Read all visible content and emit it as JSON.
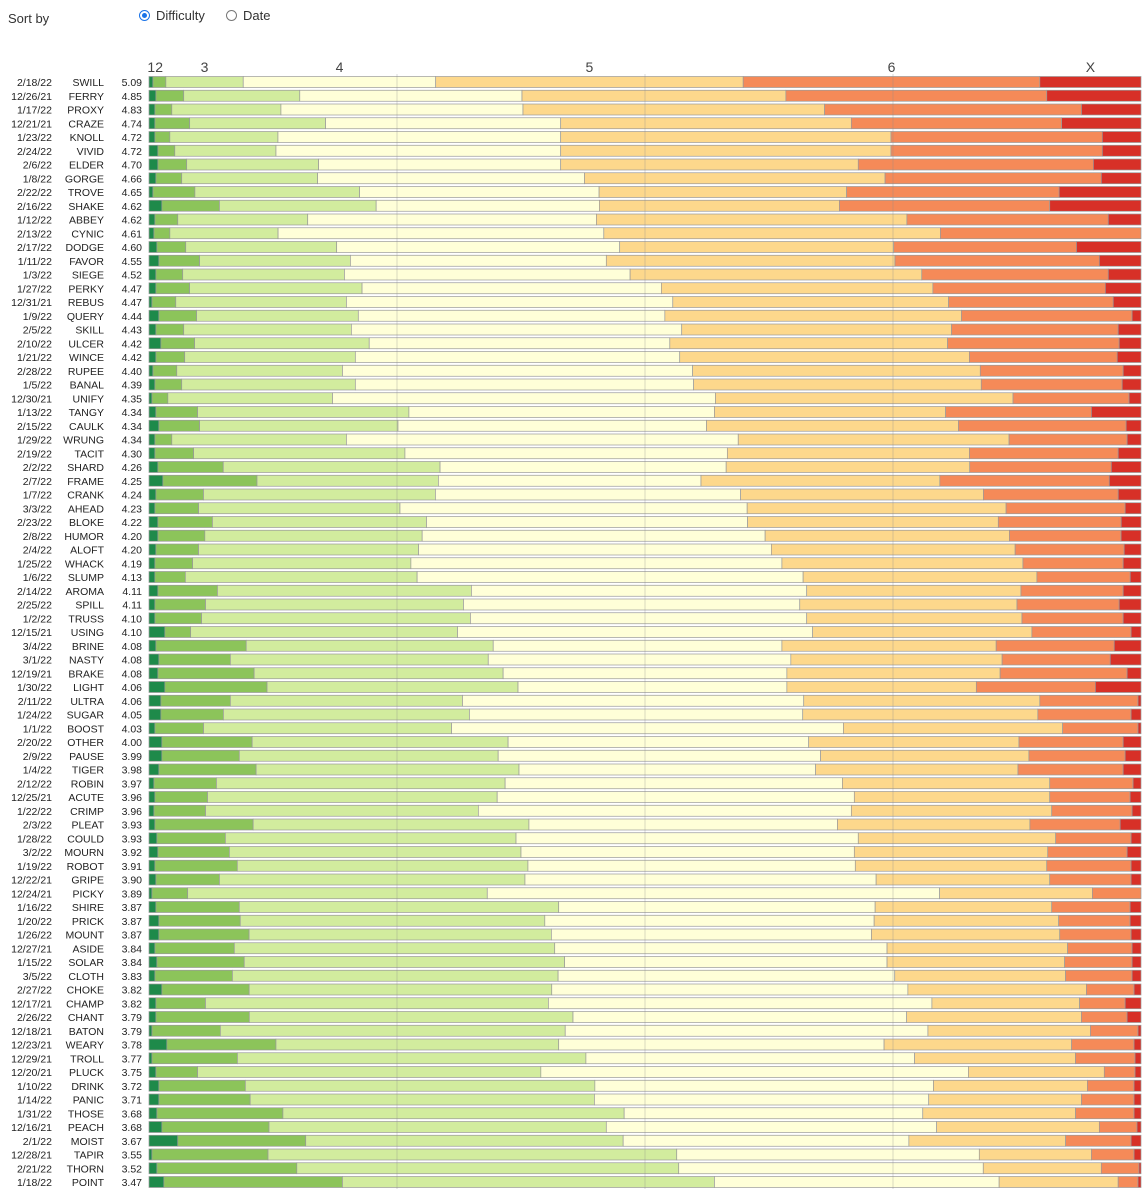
{
  "controls": {
    "sort_label": "Sort by",
    "options": [
      {
        "label": "Difficulty",
        "selected": true
      },
      {
        "label": "Date",
        "selected": false
      }
    ]
  },
  "chart_data": {
    "type": "bar",
    "subtype": "stacked-100-percent-horizontal",
    "title": "",
    "xlabel": "",
    "ylabel": "",
    "ylim": [
      0,
      100
    ],
    "segment_labels": [
      "1",
      "2",
      "3",
      "4",
      "5",
      "6",
      "X"
    ],
    "segment_label_text": [
      "12",
      "3",
      "4",
      "5",
      "6",
      "X"
    ],
    "colors": [
      "#1e8a4a",
      "#8cc45a",
      "#d2ec9e",
      "#ffffd8",
      "#fdd88c",
      "#f58a58",
      "#d73027"
    ],
    "rows": [
      {
        "date": "2/18/22",
        "word": "SWILL",
        "avg": "5.09",
        "pct": [
          0.4,
          1.3,
          7.8,
          19.4,
          31.0,
          29.9,
          10.2
        ]
      },
      {
        "date": "12/26/21",
        "word": "FERRY",
        "avg": "4.85",
        "pct": [
          0.7,
          2.8,
          11.7,
          22.4,
          26.6,
          26.3,
          9.5
        ]
      },
      {
        "date": "1/17/22",
        "word": "PROXY",
        "avg": "4.83",
        "pct": [
          0.6,
          1.7,
          11.0,
          24.4,
          30.4,
          25.9,
          6.0
        ]
      },
      {
        "date": "12/21/21",
        "word": "CRAZE",
        "avg": "4.74",
        "pct": [
          0.6,
          3.5,
          13.7,
          23.7,
          29.3,
          21.2,
          8.0
        ]
      },
      {
        "date": "1/23/22",
        "word": "KNOLL",
        "avg": "4.72",
        "pct": [
          0.6,
          1.5,
          10.9,
          28.5,
          33.3,
          21.3,
          3.9
        ]
      },
      {
        "date": "2/24/22",
        "word": "VIVID",
        "avg": "4.72",
        "pct": [
          0.9,
          1.7,
          10.2,
          28.7,
          33.3,
          21.3,
          3.9
        ]
      },
      {
        "date": "2/6/22",
        "word": "ELDER",
        "avg": "4.70",
        "pct": [
          0.9,
          2.9,
          13.3,
          24.4,
          30.0,
          23.7,
          4.8
        ]
      },
      {
        "date": "1/8/22",
        "word": "GORGE",
        "avg": "4.66",
        "pct": [
          0.7,
          2.6,
          13.7,
          26.9,
          30.3,
          21.8,
          4.0
        ]
      },
      {
        "date": "2/22/22",
        "word": "TROVE",
        "avg": "4.65",
        "pct": [
          0.4,
          4.2,
          16.5,
          24.0,
          24.8,
          21.3,
          8.2
        ]
      },
      {
        "date": "2/16/22",
        "word": "SHAKE",
        "avg": "4.62",
        "pct": [
          1.3,
          5.8,
          15.8,
          22.5,
          24.2,
          21.2,
          9.2
        ]
      },
      {
        "date": "1/12/22",
        "word": "ABBEY",
        "avg": "4.62",
        "pct": [
          0.6,
          2.3,
          13.1,
          29.1,
          31.3,
          20.3,
          3.3
        ]
      },
      {
        "date": "2/13/22",
        "word": "CYNIC",
        "avg": "4.61",
        "pct": [
          0.5,
          1.6,
          10.9,
          32.8,
          33.9,
          20.2,
          0.0
        ]
      },
      {
        "date": "2/17/22",
        "word": "DODGE",
        "avg": "4.60",
        "pct": [
          0.8,
          2.9,
          15.2,
          28.5,
          27.6,
          18.4,
          6.5
        ]
      },
      {
        "date": "1/11/22",
        "word": "FAVOR",
        "avg": "4.55",
        "pct": [
          1.0,
          4.1,
          15.2,
          25.8,
          29.1,
          20.6,
          4.2
        ]
      },
      {
        "date": "1/3/22",
        "word": "SIEGE",
        "avg": "4.52",
        "pct": [
          0.7,
          2.7,
          16.3,
          28.8,
          29.4,
          18.8,
          3.3
        ]
      },
      {
        "date": "1/27/22",
        "word": "PERKY",
        "avg": "4.47",
        "pct": [
          0.7,
          3.4,
          17.4,
          30.2,
          27.4,
          17.4,
          3.6
        ]
      },
      {
        "date": "12/31/21",
        "word": "REBUS",
        "avg": "4.47",
        "pct": [
          0.3,
          2.4,
          17.2,
          32.9,
          27.8,
          16.6,
          2.8
        ]
      },
      {
        "date": "1/9/22",
        "word": "QUERY",
        "avg": "4.44",
        "pct": [
          1.0,
          3.8,
          16.3,
          30.9,
          29.9,
          17.2,
          0.9
        ]
      },
      {
        "date": "2/5/22",
        "word": "SKILL",
        "avg": "4.43",
        "pct": [
          0.7,
          2.8,
          16.9,
          33.3,
          27.2,
          16.8,
          2.3
        ]
      },
      {
        "date": "2/10/22",
        "word": "ULCER",
        "avg": "4.42",
        "pct": [
          1.2,
          3.4,
          17.6,
          30.3,
          28.0,
          17.3,
          2.2
        ]
      },
      {
        "date": "1/21/22",
        "word": "WINCE",
        "avg": "4.42",
        "pct": [
          0.7,
          2.9,
          17.2,
          32.7,
          29.2,
          14.9,
          2.4
        ]
      },
      {
        "date": "2/28/22",
        "word": "RUPEE",
        "avg": "4.40",
        "pct": [
          0.4,
          2.4,
          16.7,
          35.3,
          29.0,
          14.4,
          1.8
        ]
      },
      {
        "date": "1/5/22",
        "word": "BANAL",
        "avg": "4.39",
        "pct": [
          0.6,
          2.7,
          17.5,
          34.1,
          29.0,
          14.2,
          1.9
        ]
      },
      {
        "date": "12/30/21",
        "word": "UNIFY",
        "avg": "4.35",
        "pct": [
          0.3,
          1.6,
          16.6,
          38.6,
          30.0,
          11.7,
          1.2
        ]
      },
      {
        "date": "1/13/22",
        "word": "TANGY",
        "avg": "4.34",
        "pct": [
          0.7,
          4.2,
          21.3,
          30.8,
          23.3,
          14.7,
          5.0
        ]
      },
      {
        "date": "2/15/22",
        "word": "CAULK",
        "avg": "4.34",
        "pct": [
          1.0,
          4.1,
          20.0,
          31.1,
          25.4,
          16.9,
          1.5
        ]
      },
      {
        "date": "1/29/22",
        "word": "WRUNG",
        "avg": "4.34",
        "pct": [
          0.6,
          1.7,
          17.6,
          39.5,
          27.3,
          11.9,
          1.4
        ]
      },
      {
        "date": "2/19/22",
        "word": "TACIT",
        "avg": "4.30",
        "pct": [
          0.6,
          3.9,
          21.3,
          32.5,
          24.4,
          15.0,
          2.3
        ]
      },
      {
        "date": "2/2/22",
        "word": "SHARD",
        "avg": "4.26",
        "pct": [
          0.9,
          6.6,
          21.9,
          28.9,
          24.6,
          14.3,
          3.0
        ]
      },
      {
        "date": "2/7/22",
        "word": "FRAME",
        "avg": "4.25",
        "pct": [
          1.4,
          9.5,
          18.3,
          26.5,
          24.1,
          17.1,
          3.2
        ]
      },
      {
        "date": "1/7/22",
        "word": "CRANK",
        "avg": "4.24",
        "pct": [
          0.7,
          4.8,
          23.4,
          30.8,
          24.5,
          13.6,
          2.3
        ]
      },
      {
        "date": "3/3/22",
        "word": "AHEAD",
        "avg": "4.23",
        "pct": [
          0.6,
          4.4,
          20.3,
          35.0,
          26.1,
          12.0,
          1.6
        ]
      },
      {
        "date": "2/23/22",
        "word": "BLOKE",
        "avg": "4.22",
        "pct": [
          0.9,
          5.5,
          21.6,
          32.4,
          25.3,
          12.4,
          2.0
        ]
      },
      {
        "date": "2/8/22",
        "word": "HUMOR",
        "avg": "4.20",
        "pct": [
          0.9,
          4.7,
          21.8,
          34.4,
          24.5,
          11.2,
          2.0
        ]
      },
      {
        "date": "2/4/22",
        "word": "ALOFT",
        "avg": "4.20",
        "pct": [
          0.7,
          4.3,
          22.2,
          35.6,
          24.6,
          11.0,
          1.7
        ]
      },
      {
        "date": "1/25/22",
        "word": "WHACK",
        "avg": "4.19",
        "pct": [
          0.6,
          3.8,
          22.0,
          37.4,
          24.3,
          10.1,
          1.8
        ]
      },
      {
        "date": "1/6/22",
        "word": "SLUMP",
        "avg": "4.13",
        "pct": [
          0.6,
          3.1,
          23.6,
          39.3,
          23.8,
          9.5,
          1.1
        ]
      },
      {
        "date": "2/14/22",
        "word": "AROMA",
        "avg": "4.11",
        "pct": [
          0.9,
          6.0,
          25.6,
          33.8,
          21.6,
          10.3,
          1.8
        ]
      },
      {
        "date": "2/25/22",
        "word": "SPILL",
        "avg": "4.11",
        "pct": [
          0.6,
          5.1,
          26.0,
          33.9,
          21.9,
          10.3,
          2.2
        ]
      },
      {
        "date": "1/2/22",
        "word": "TRUSS",
        "avg": "4.10",
        "pct": [
          0.6,
          4.7,
          27.1,
          33.9,
          21.7,
          10.2,
          1.8
        ]
      },
      {
        "date": "12/15/21",
        "word": "USING",
        "avg": "4.10",
        "pct": [
          1.6,
          2.6,
          26.9,
          35.8,
          22.1,
          10.0,
          1.0
        ]
      },
      {
        "date": "3/4/22",
        "word": "BRINE",
        "avg": "4.08",
        "pct": [
          0.7,
          9.1,
          24.9,
          29.1,
          21.6,
          11.9,
          2.7
        ]
      },
      {
        "date": "3/1/22",
        "word": "NASTY",
        "avg": "4.08",
        "pct": [
          1.0,
          7.2,
          26.0,
          30.5,
          21.3,
          10.9,
          3.1
        ]
      },
      {
        "date": "12/19/21",
        "word": "BRAKE",
        "avg": "4.08",
        "pct": [
          0.9,
          9.7,
          25.1,
          28.6,
          21.5,
          12.8,
          1.4
        ]
      },
      {
        "date": "1/30/22",
        "word": "LIGHT",
        "avg": "4.06",
        "pct": [
          1.6,
          10.3,
          25.3,
          27.1,
          19.1,
          12.0,
          4.6
        ]
      },
      {
        "date": "2/11/22",
        "word": "ULTRA",
        "avg": "4.06",
        "pct": [
          1.2,
          7.0,
          23.4,
          34.4,
          23.8,
          9.9,
          0.3
        ]
      },
      {
        "date": "1/24/22",
        "word": "SUGAR",
        "avg": "4.05",
        "pct": [
          1.2,
          6.3,
          24.8,
          33.6,
          23.7,
          9.4,
          1.0
        ]
      },
      {
        "date": "1/1/22",
        "word": "BOOST",
        "avg": "4.03",
        "pct": [
          0.6,
          4.9,
          25.0,
          39.5,
          22.1,
          7.6,
          0.3
        ]
      },
      {
        "date": "2/20/22",
        "word": "OTHER",
        "avg": "4.00",
        "pct": [
          1.3,
          9.1,
          25.8,
          30.3,
          21.2,
          10.5,
          1.8
        ]
      },
      {
        "date": "2/9/22",
        "word": "PAUSE",
        "avg": "3.99",
        "pct": [
          1.3,
          7.8,
          26.1,
          32.5,
          21.0,
          9.7,
          1.6
        ]
      },
      {
        "date": "1/4/22",
        "word": "TIGER",
        "avg": "3.98",
        "pct": [
          1.0,
          9.8,
          26.5,
          29.9,
          20.4,
          10.6,
          1.8
        ]
      },
      {
        "date": "2/12/22",
        "word": "ROBIN",
        "avg": "3.97",
        "pct": [
          0.5,
          6.3,
          29.1,
          34.0,
          20.9,
          8.4,
          0.8
        ]
      },
      {
        "date": "12/25/21",
        "word": "ACUTE",
        "avg": "3.96",
        "pct": [
          0.6,
          5.3,
          29.2,
          36.0,
          19.7,
          8.1,
          1.1
        ]
      },
      {
        "date": "1/22/22",
        "word": "CRIMP",
        "avg": "3.96",
        "pct": [
          0.5,
          5.2,
          27.5,
          37.6,
          20.2,
          8.1,
          0.9
        ]
      },
      {
        "date": "2/3/22",
        "word": "PLEAT",
        "avg": "3.93",
        "pct": [
          0.6,
          9.9,
          27.8,
          31.1,
          19.4,
          9.1,
          2.1
        ]
      },
      {
        "date": "1/28/22",
        "word": "COULD",
        "avg": "3.93",
        "pct": [
          0.8,
          6.9,
          29.3,
          34.5,
          19.9,
          7.6,
          1.0
        ]
      },
      {
        "date": "3/2/22",
        "word": "MOURN",
        "avg": "3.92",
        "pct": [
          0.9,
          7.2,
          29.4,
          33.6,
          19.5,
          8.0,
          1.4
        ]
      },
      {
        "date": "1/19/22",
        "word": "ROBOT",
        "avg": "3.91",
        "pct": [
          0.6,
          8.3,
          29.3,
          33.0,
          19.3,
          8.5,
          1.0
        ]
      },
      {
        "date": "12/22/21",
        "word": "GRIPE",
        "avg": "3.90",
        "pct": [
          0.7,
          6.4,
          30.8,
          35.4,
          17.5,
          8.2,
          1.0
        ]
      },
      {
        "date": "12/24/21",
        "word": "PICKY",
        "avg": "3.89",
        "pct": [
          0.3,
          3.6,
          30.2,
          45.6,
          15.4,
          4.9,
          0.0
        ]
      },
      {
        "date": "1/16/22",
        "word": "SHIRE",
        "avg": "3.87",
        "pct": [
          0.7,
          8.4,
          32.2,
          31.9,
          17.8,
          7.9,
          1.1
        ]
      },
      {
        "date": "1/20/22",
        "word": "PRICK",
        "avg": "3.87",
        "pct": [
          1.0,
          8.2,
          30.7,
          33.2,
          18.6,
          7.2,
          1.1
        ]
      },
      {
        "date": "1/26/22",
        "word": "MOUNT",
        "avg": "3.87",
        "pct": [
          1.0,
          9.1,
          30.5,
          32.3,
          19.0,
          7.2,
          1.0
        ]
      },
      {
        "date": "12/27/21",
        "word": "ASIDE",
        "avg": "3.84",
        "pct": [
          0.6,
          8.0,
          32.3,
          33.5,
          18.2,
          6.5,
          0.9
        ]
      },
      {
        "date": "1/15/22",
        "word": "SOLAR",
        "avg": "3.84",
        "pct": [
          0.8,
          8.8,
          32.3,
          32.5,
          17.9,
          6.8,
          0.9
        ]
      },
      {
        "date": "3/5/22",
        "word": "CLOTH",
        "avg": "3.83",
        "pct": [
          0.6,
          7.8,
          32.8,
          33.9,
          17.2,
          6.7,
          0.9
        ]
      },
      {
        "date": "2/27/22",
        "word": "CHOKE",
        "avg": "3.82",
        "pct": [
          1.3,
          8.8,
          30.5,
          35.9,
          18.0,
          4.8,
          0.7
        ]
      },
      {
        "date": "12/17/21",
        "word": "CHAMP",
        "avg": "3.82",
        "pct": [
          0.7,
          5.0,
          34.6,
          38.7,
          14.9,
          4.6,
          1.6
        ]
      },
      {
        "date": "2/26/22",
        "word": "CHANT",
        "avg": "3.79",
        "pct": [
          0.7,
          9.4,
          32.6,
          33.6,
          17.6,
          4.6,
          1.4
        ]
      },
      {
        "date": "12/18/21",
        "word": "BATON",
        "avg": "3.79",
        "pct": [
          0.3,
          6.9,
          34.8,
          36.6,
          16.4,
          4.8,
          0.3
        ]
      },
      {
        "date": "12/23/21",
        "word": "WEARY",
        "avg": "3.78",
        "pct": [
          1.8,
          11.0,
          28.5,
          32.8,
          18.9,
          6.3,
          0.7
        ]
      },
      {
        "date": "12/29/21",
        "word": "TROLL",
        "avg": "3.77",
        "pct": [
          0.3,
          8.6,
          35.1,
          33.1,
          16.2,
          6.0,
          0.6
        ]
      },
      {
        "date": "12/20/21",
        "word": "PLUCK",
        "avg": "3.75",
        "pct": [
          0.7,
          4.2,
          34.6,
          43.1,
          13.7,
          3.1,
          0.6
        ]
      },
      {
        "date": "1/10/22",
        "word": "DRINK",
        "avg": "3.72",
        "pct": [
          1.0,
          8.7,
          35.2,
          34.1,
          15.5,
          4.7,
          0.7
        ]
      },
      {
        "date": "1/14/22",
        "word": "PANIC",
        "avg": "3.71",
        "pct": [
          1.0,
          9.2,
          34.7,
          33.7,
          15.4,
          5.3,
          0.7
        ]
      },
      {
        "date": "1/31/22",
        "word": "THOSE",
        "avg": "3.68",
        "pct": [
          0.8,
          12.7,
          34.4,
          30.1,
          15.4,
          5.9,
          0.7
        ]
      },
      {
        "date": "12/16/21",
        "word": "PEACH",
        "avg": "3.68",
        "pct": [
          1.3,
          10.8,
          34.0,
          33.3,
          16.4,
          3.8,
          0.4
        ]
      },
      {
        "date": "2/1/22",
        "word": "MOIST",
        "avg": "3.67",
        "pct": [
          2.9,
          12.9,
          32.0,
          28.8,
          15.8,
          6.6,
          1.0
        ]
      },
      {
        "date": "12/28/21",
        "word": "TAPIR",
        "avg": "3.55",
        "pct": [
          0.3,
          11.7,
          41.2,
          30.5,
          11.3,
          4.3,
          0.7
        ]
      },
      {
        "date": "2/21/22",
        "word": "THORN",
        "avg": "3.52",
        "pct": [
          0.8,
          14.1,
          38.5,
          30.7,
          11.9,
          3.8,
          0.2
        ]
      },
      {
        "date": "1/18/22",
        "word": "POINT",
        "avg": "3.47",
        "pct": [
          1.5,
          18.0,
          37.5,
          28.7,
          12.0,
          2.0,
          0.3
        ]
      }
    ]
  }
}
